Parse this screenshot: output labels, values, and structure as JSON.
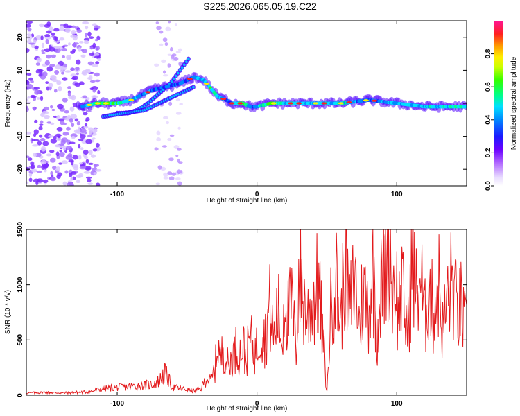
{
  "figure_title": "S225.2026.065.05.19.C22",
  "chart_data": [
    {
      "type": "heatmap",
      "name": "spectrogram",
      "xlabel": "Height of straight line (km)",
      "ylabel": "Frequency (Hz)",
      "xlim": [
        -165,
        150
      ],
      "ylim": [
        -25,
        25
      ],
      "xticks": [
        -100,
        0,
        100
      ],
      "yticks": [
        -20,
        -10,
        0,
        10,
        20
      ],
      "colorbar": {
        "label": "Normalized spectral amplitude",
        "range": [
          0,
          1
        ],
        "ticks": [
          0.0,
          0.2,
          0.4,
          0.6,
          0.8
        ],
        "tick_labels": [
          "0.0",
          "0.2",
          "0.4",
          "0.6",
          "0.8"
        ],
        "colormap": [
          "#dccbff",
          "#7a1fff",
          "#2020ff",
          "#00c8ff",
          "#00ff66",
          "#a0ff00",
          "#ffff00",
          "#ff9900",
          "#ff2020",
          "#ff1493"
        ]
      },
      "ridge": {
        "x": [
          -125,
          -115,
          -100,
          -90,
          -80,
          -75,
          -65,
          -55,
          -45,
          -38,
          -32,
          -28,
          -22,
          -18,
          -10,
          -5,
          0,
          10,
          20,
          40,
          60,
          80,
          100,
          120,
          150
        ],
        "freq": [
          -1,
          0,
          0,
          1,
          3,
          4,
          5,
          6,
          8,
          7,
          4,
          2,
          1,
          0,
          0,
          -1,
          -1,
          0,
          0,
          0,
          0,
          1,
          0,
          -1,
          -1
        ],
        "amplitude": [
          0.45,
          0.7,
          0.75,
          0.55,
          0.5,
          0.45,
          0.4,
          0.4,
          0.45,
          0.5,
          0.75,
          0.55,
          0.45,
          0.4,
          0.8,
          0.45,
          0.5,
          0.8,
          0.6,
          0.55,
          0.6,
          0.45,
          0.55,
          0.55,
          0.7
        ]
      },
      "secondary_branch": {
        "x": [
          -100,
          -92,
          -85,
          -78,
          -70,
          -62,
          -55,
          -48
        ],
        "freq": [
          -3,
          -3,
          -2,
          0,
          3,
          6,
          10,
          14
        ]
      },
      "lower_branch": {
        "x": [
          -110,
          -95,
          -80,
          -65,
          -55,
          -45
        ],
        "freq": [
          -4,
          -3,
          -2,
          1,
          3,
          5
        ]
      }
    },
    {
      "type": "line",
      "name": "snr",
      "xlabel": "Height of straight line (km)",
      "ylabel": "SNR (10 * v/v)",
      "xlim": [
        -165,
        150
      ],
      "ylim": [
        0,
        1500
      ],
      "xticks": [
        -100,
        0,
        100
      ],
      "yticks": [
        0,
        500,
        1000,
        1500
      ],
      "color": "#e31a1c",
      "x": [
        -165,
        -150,
        -140,
        -120,
        -110,
        -100,
        -90,
        -80,
        -75,
        -70,
        -66,
        -60,
        -50,
        -45,
        -40,
        -36,
        -33,
        -30,
        -28,
        -26,
        -24,
        -22,
        -20,
        -18,
        -15,
        -12,
        -10,
        -8,
        -5,
        -2,
        0,
        3,
        6,
        9,
        12,
        15,
        18,
        20,
        22,
        25,
        28,
        30,
        33,
        36,
        40,
        44,
        48,
        50,
        53,
        56,
        60,
        63,
        66,
        70,
        73,
        76,
        80,
        83,
        86,
        88,
        90,
        93,
        95,
        97,
        99,
        101,
        103,
        105,
        108,
        111,
        114,
        117,
        120,
        123,
        126,
        130,
        133,
        136,
        140,
        143,
        146,
        148,
        150
      ],
      "y": [
        20,
        25,
        20,
        30,
        60,
        70,
        80,
        90,
        100,
        130,
        200,
        70,
        50,
        40,
        60,
        160,
        120,
        240,
        500,
        300,
        440,
        330,
        240,
        350,
        420,
        380,
        470,
        310,
        520,
        380,
        430,
        610,
        520,
        800,
        500,
        780,
        460,
        1000,
        700,
        830,
        400,
        1130,
        870,
        700,
        850,
        1000,
        380,
        0,
        820,
        1100,
        650,
        1280,
        720,
        1100,
        640,
        940,
        780,
        1150,
        540,
        900,
        1050,
        1280,
        1500,
        900,
        1170,
        700,
        1000,
        810,
        560,
        1270,
        900,
        1100,
        660,
        1000,
        740,
        1030,
        580,
        860,
        1050,
        740,
        800,
        650,
        560
      ]
    }
  ]
}
